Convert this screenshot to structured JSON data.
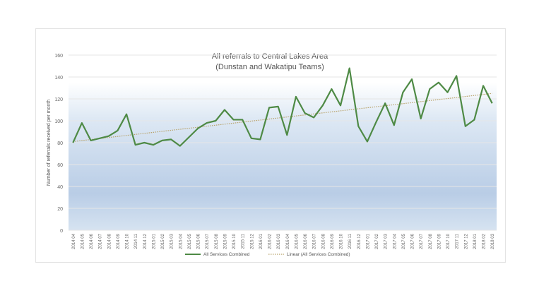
{
  "chart_data": {
    "type": "line",
    "title": "All referrals to Central Lakes Area",
    "subtitle": "(Dunstan and Wakatipu Teams)",
    "xlabel": "",
    "ylabel": "Number of referrals received per month",
    "ylim": [
      0,
      160
    ],
    "yticks": [
      0,
      20,
      40,
      60,
      80,
      100,
      120,
      140,
      160
    ],
    "grid": true,
    "legend_position": "bottom",
    "categories": [
      "2014 04",
      "2014 05",
      "2014 06",
      "2014 07",
      "2014 08",
      "2014 09",
      "2014 10",
      "2014 11",
      "2014 12",
      "2015 01",
      "2015 02",
      "2015 03",
      "2015 04",
      "2015 05",
      "2015 06",
      "2015 07",
      "2015 08",
      "2015 09",
      "2015 10",
      "2015 11",
      "2015 12",
      "2016 01",
      "2016 02",
      "2016 03",
      "2016 04",
      "2016 05",
      "2016 06",
      "2016 07",
      "2016 08",
      "2016 09",
      "2016 10",
      "2016 11",
      "2016 12",
      "2017 01",
      "2017 02",
      "2017 03",
      "2017 04",
      "2017 05",
      "2017 06",
      "2017 07",
      "2017 08",
      "2017 09",
      "2017 10",
      "2017 11",
      "2017 12",
      "2018 01",
      "2018 02",
      "2018 03"
    ],
    "series": [
      {
        "name": "All Services Combined",
        "color": "#4e8a45",
        "values": [
          80,
          98,
          82,
          84,
          86,
          91,
          106,
          78,
          80,
          78,
          82,
          83,
          77,
          85,
          93,
          98,
          100,
          110,
          101,
          101,
          84,
          83,
          112,
          113,
          87,
          122,
          107,
          103,
          114,
          129,
          114,
          148,
          95,
          81,
          99,
          116,
          96,
          126,
          138,
          102,
          129,
          135,
          126,
          141,
          95,
          101,
          132,
          116
        ]
      },
      {
        "name": "Linear (All Services Combined)",
        "color": "#b8a26a",
        "style": "dotted",
        "trend_start": 81,
        "trend_end": 125
      }
    ]
  }
}
